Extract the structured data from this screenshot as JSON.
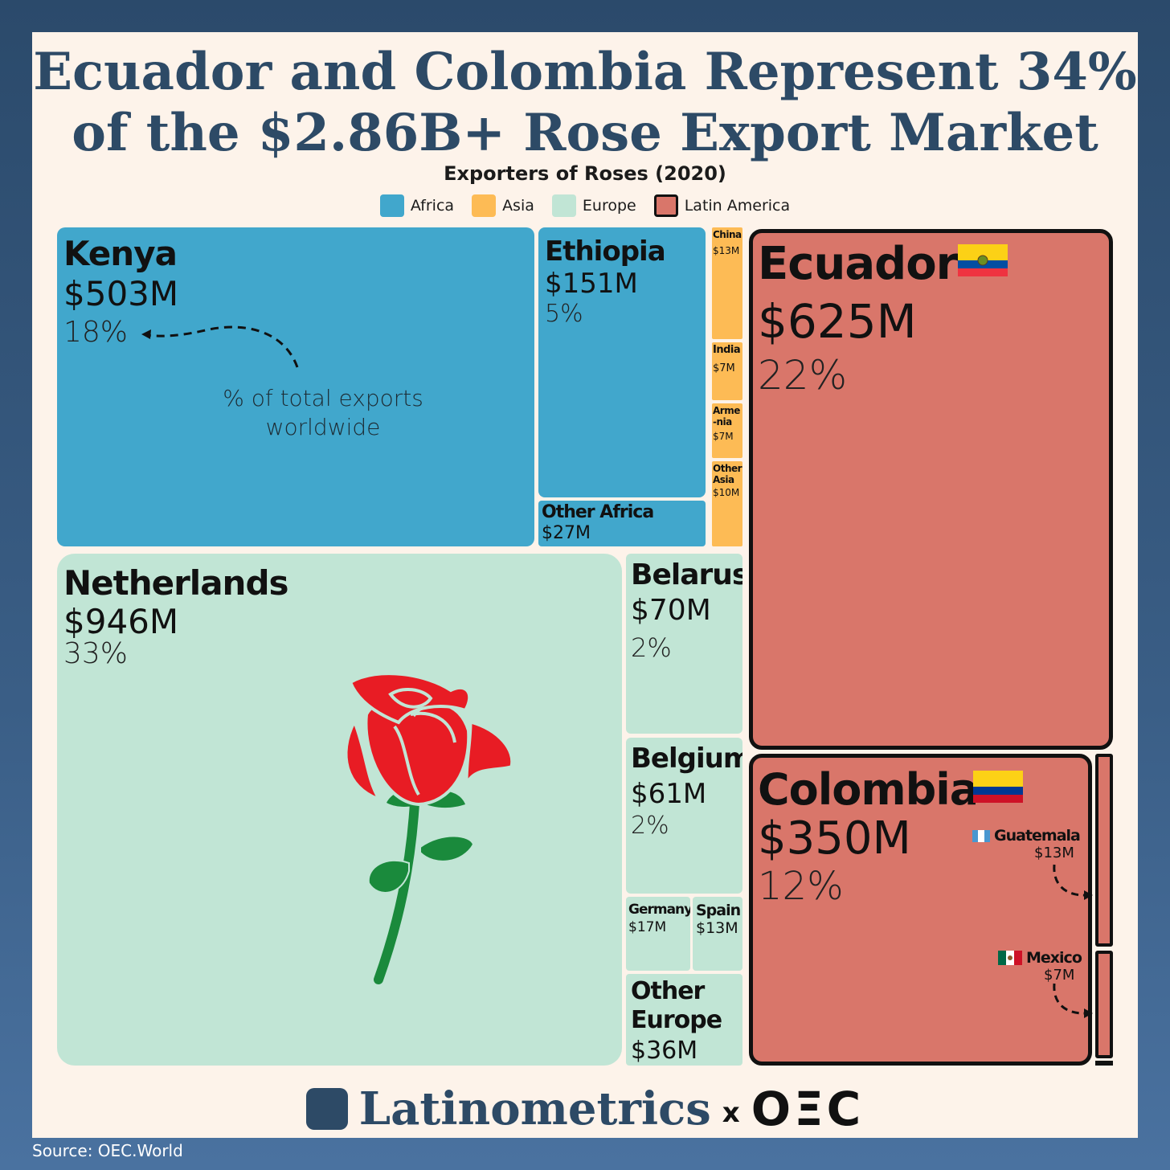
{
  "header": {
    "title_line1": "Ecuador and Colombia Represent 34%",
    "title_line2": "of the $2.86B+ Rose Export Market"
  },
  "chart_data": {
    "type": "treemap",
    "title": "Ecuador and Colombia Represent 34% of the $2.86B+ Rose Export Market",
    "subtitle": "Exporters of Roses (2020)",
    "legend": [
      {
        "name": "Africa",
        "color": "#41a7cc"
      },
      {
        "name": "Asia",
        "color": "#fdbb55"
      },
      {
        "name": "Europe",
        "color": "#c1e5d5"
      },
      {
        "name": "Latin America",
        "color": "#d9766a"
      }
    ],
    "tiles": [
      {
        "name": "Kenya",
        "region": "Africa",
        "value": "$503M",
        "value_musd": 503,
        "pct": "18%"
      },
      {
        "name": "Ethiopia",
        "region": "Africa",
        "value": "$151M",
        "value_musd": 151,
        "pct": "5%"
      },
      {
        "name": "Other Africa",
        "region": "Africa",
        "value": "$27M",
        "value_musd": 27
      },
      {
        "name": "China",
        "region": "Asia",
        "value": "$13M",
        "value_musd": 13
      },
      {
        "name": "India",
        "region": "Asia",
        "value": "$7M",
        "value_musd": 7
      },
      {
        "name": "Arme-nia",
        "region": "Asia",
        "value": "$7M",
        "value_musd": 7
      },
      {
        "name": "Other Asia",
        "region": "Asia",
        "value": "$10M",
        "value_musd": 10
      },
      {
        "name": "Netherlands",
        "region": "Europe",
        "value": "$946M",
        "value_musd": 946,
        "pct": "33%"
      },
      {
        "name": "Belarus",
        "region": "Europe",
        "value": "$70M",
        "value_musd": 70,
        "pct": "2%"
      },
      {
        "name": "Belgium",
        "region": "Europe",
        "value": "$61M",
        "value_musd": 61,
        "pct": "2%"
      },
      {
        "name": "Germany",
        "region": "Europe",
        "value": "$17M",
        "value_musd": 17
      },
      {
        "name": "Spain",
        "region": "Europe",
        "value": "$13M",
        "value_musd": 13
      },
      {
        "name": "Other Europe",
        "region": "Europe",
        "value": "$36M",
        "value_musd": 36
      },
      {
        "name": "Ecuador",
        "region": "Latin America",
        "value": "$625M",
        "value_musd": 625,
        "pct": "22%"
      },
      {
        "name": "Colombia",
        "region": "Latin America",
        "value": "$350M",
        "value_musd": 350,
        "pct": "12%"
      },
      {
        "name": "Guatemala",
        "region": "Latin America",
        "value": "$13M",
        "value_musd": 13
      },
      {
        "name": "Mexico",
        "region": "Latin America",
        "value": "$7M",
        "value_musd": 7
      }
    ],
    "annotation": "% of total exports worldwide"
  },
  "annotation": {
    "line1": "% of total exports",
    "line2": "worldwide"
  },
  "footer": {
    "brand": "Latinometrics",
    "x": "x",
    "partner": "OΞC",
    "source": "Source:  OEC.World"
  }
}
